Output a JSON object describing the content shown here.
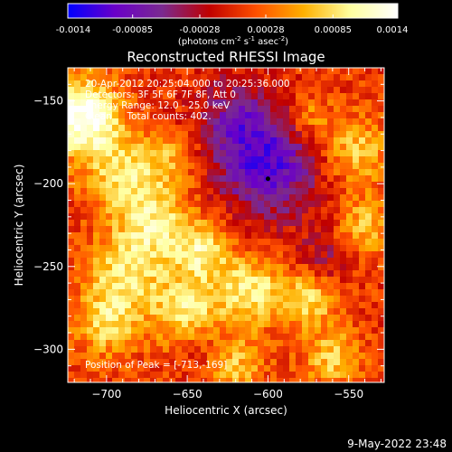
{
  "colors": {
    "background": "#000000",
    "text": "#ffffff",
    "colorbar_stops": [
      "#0000ff",
      "#6a00c8",
      "#7a2a90",
      "#c00000",
      "#ff5000",
      "#ffb000",
      "#ffffa0",
      "#ffffff"
    ]
  },
  "colorbar": {
    "ticks": [
      "-0.0014",
      "-0.00085",
      "-0.00028",
      "0.00028",
      "0.00085",
      "0.0014"
    ],
    "tick_values": [
      -0.0014,
      -0.00085,
      -0.00028,
      0.00028,
      0.00085,
      0.0014
    ],
    "range": [
      -0.0014,
      0.0014
    ],
    "units_prefix": "(photons cm",
    "units_exp1": "-2",
    "units_mid": " s",
    "units_exp2": "-1",
    "units_mid2": " asec",
    "units_exp3": "-2",
    "units_suffix": ")"
  },
  "chart_data": {
    "type": "heatmap",
    "title": "Reconstructed RHESSI Image",
    "xlabel": "Heliocentric X (arcsec)",
    "ylabel": "Heliocentric Y (arcsec)",
    "xlim": [
      -724,
      -528
    ],
    "ylim": [
      -320,
      -130
    ],
    "x_ticks": [
      -700,
      -650,
      -600,
      -550
    ],
    "y_ticks": [
      -150,
      -200,
      -250,
      -300
    ],
    "x_tick_labels": [
      "−700",
      "−650",
      "−600",
      "−550"
    ],
    "y_tick_labels": [
      "−150",
      "−200",
      "−250",
      "−300"
    ],
    "annotations": {
      "time_range": "20-Apr-2012 20:25:04.000 to 20:25:36.000",
      "detectors": "Detectors: 3F 5F 6F 7F 8F, Att 0",
      "energy_range": "Energy Range: 12.0 - 25.0 keV",
      "method_counts": "Clean     Total counts: 402.",
      "peak": "Position of Peak = [-713,-169]"
    },
    "peak_position": [
      -713,
      -169
    ],
    "peak_marker": [
      -600,
      -197
    ],
    "colorscale": "rhessi-blue-red-yellow",
    "blobs": [
      {
        "x": -715,
        "y": -160,
        "amp": 1.0,
        "r": 16
      },
      {
        "x": -690,
        "y": -195,
        "amp": 0.55,
        "r": 16
      },
      {
        "x": -660,
        "y": -185,
        "amp": 0.35,
        "r": 12
      },
      {
        "x": -670,
        "y": -225,
        "amp": 0.6,
        "r": 16
      },
      {
        "x": -640,
        "y": -240,
        "amp": 0.6,
        "r": 12
      },
      {
        "x": -690,
        "y": -255,
        "amp": 0.55,
        "r": 16
      },
      {
        "x": -650,
        "y": -275,
        "amp": 0.6,
        "r": 16
      },
      {
        "x": -700,
        "y": -285,
        "amp": 0.5,
        "r": 14
      },
      {
        "x": -610,
        "y": -265,
        "amp": 0.65,
        "r": 14
      },
      {
        "x": -575,
        "y": -270,
        "amp": 0.55,
        "r": 12
      },
      {
        "x": -620,
        "y": -310,
        "amp": 0.45,
        "r": 12
      },
      {
        "x": -560,
        "y": -305,
        "amp": 0.5,
        "r": 12
      },
      {
        "x": -545,
        "y": -180,
        "amp": 0.5,
        "r": 14
      },
      {
        "x": -540,
        "y": -225,
        "amp": 0.45,
        "r": 12
      },
      {
        "x": -575,
        "y": -160,
        "amp": 0.35,
        "r": 10
      },
      {
        "x": -600,
        "y": -190,
        "amp": -0.75,
        "r": 22
      },
      {
        "x": -620,
        "y": -160,
        "amp": -0.45,
        "r": 18
      },
      {
        "x": -565,
        "y": -245,
        "amp": -0.3,
        "r": 12
      },
      {
        "x": -640,
        "y": -300,
        "amp": -0.2,
        "r": 10
      }
    ]
  },
  "footer": {
    "timestamp": "9-May-2022 23:48"
  }
}
